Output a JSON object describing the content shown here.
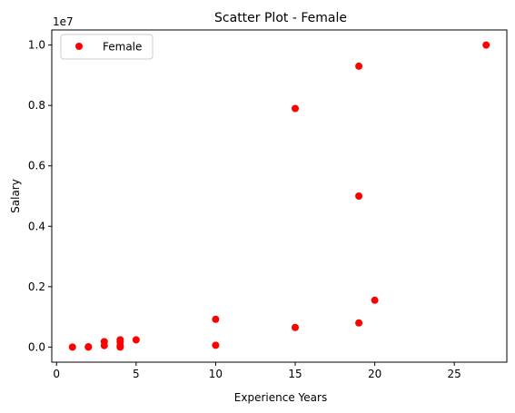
{
  "chart_data": {
    "type": "scatter",
    "title": "Scatter Plot - Female",
    "xlabel": "Experience Years",
    "ylabel": "Salary",
    "y_offset_label": "1e7",
    "xlim": [
      -0.3,
      28.3
    ],
    "ylim": [
      -0.05,
      1.05
    ],
    "x_ticks": [
      0,
      5,
      10,
      15,
      20,
      25
    ],
    "y_ticks": [
      0.0,
      0.2,
      0.4,
      0.6,
      0.8,
      1.0
    ],
    "y_tick_labels": [
      "0.0",
      "0.2",
      "0.4",
      "0.6",
      "0.8",
      "1.0"
    ],
    "grid": false,
    "legend_position": "upper-left",
    "series": [
      {
        "name": "Female",
        "color": "#ff0000",
        "marker": "circle",
        "points": [
          {
            "x": 1,
            "y": 0.0
          },
          {
            "x": 2,
            "y": 0.0
          },
          {
            "x": 2,
            "y": 0.001
          },
          {
            "x": 3,
            "y": 0.005
          },
          {
            "x": 3,
            "y": 0.018
          },
          {
            "x": 4,
            "y": 0.0
          },
          {
            "x": 4,
            "y": 0.005
          },
          {
            "x": 4,
            "y": 0.017
          },
          {
            "x": 4,
            "y": 0.024
          },
          {
            "x": 5,
            "y": 0.024
          },
          {
            "x": 10,
            "y": 0.006
          },
          {
            "x": 10,
            "y": 0.092
          },
          {
            "x": 15,
            "y": 0.065
          },
          {
            "x": 15,
            "y": 0.79
          },
          {
            "x": 19,
            "y": 0.08
          },
          {
            "x": 19,
            "y": 0.5
          },
          {
            "x": 19,
            "y": 0.93
          },
          {
            "x": 20,
            "y": 0.155
          },
          {
            "x": 27,
            "y": 1.0
          }
        ]
      }
    ]
  }
}
